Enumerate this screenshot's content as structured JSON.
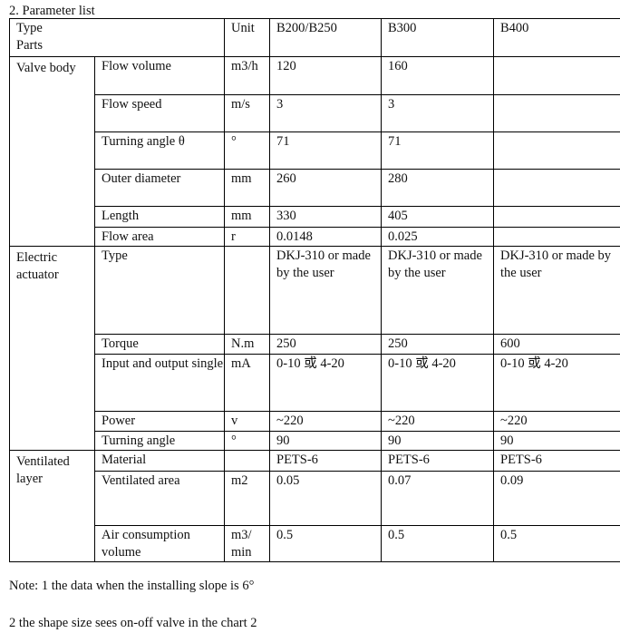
{
  "title": "2. Parameter list",
  "header": {
    "type": "Type",
    "parts": "Parts",
    "unit": "Unit",
    "models": [
      "B200/B250",
      "B300",
      "B400"
    ]
  },
  "groups": [
    {
      "name": "Valve body",
      "rows": [
        {
          "param": "Flow volume",
          "unit": "m3/h",
          "values": [
            "120",
            "160",
            ""
          ]
        },
        {
          "param": "Flow speed",
          "unit": "m/s",
          "values": [
            "3",
            "3",
            ""
          ]
        },
        {
          "param": "Turning angle θ",
          "unit": "°",
          "values": [
            "71",
            "71",
            ""
          ]
        },
        {
          "param": "Outer diameter",
          "unit": "mm",
          "values": [
            "260",
            "280",
            ""
          ]
        },
        {
          "param": "Length",
          "unit": "mm",
          "values": [
            "330",
            "405",
            ""
          ]
        },
        {
          "param": "Flow area",
          "unit": "r",
          "values": [
            "0.0148",
            "0.025",
            ""
          ]
        }
      ]
    },
    {
      "name": "Electric actuator",
      "rows": [
        {
          "param": "Type",
          "unit": "",
          "values": [
            "DKJ-310 or made by the user",
            "DKJ-310 or made by the user",
            "DKJ-310 or made by the user"
          ]
        },
        {
          "param": "Torque",
          "unit": "N.m",
          "values": [
            "250",
            "250",
            "600"
          ]
        },
        {
          "param": "Input and output single",
          "unit": "mA",
          "values": [
            "0-10 或 4-20",
            "0-10 或 4-20",
            "0-10 或 4-20"
          ]
        },
        {
          "param": "Power",
          "unit": "v",
          "values": [
            "~220",
            "~220",
            "~220"
          ]
        },
        {
          "param": "Turning angle",
          "unit": "°",
          "values": [
            "90",
            "90",
            "90"
          ]
        }
      ]
    },
    {
      "name": "Ventilated layer",
      "rows": [
        {
          "param": "Material",
          "unit": "",
          "values": [
            "PETS-6",
            "PETS-6",
            "PETS-6"
          ]
        },
        {
          "param": "Ventilated area",
          "unit": "m2",
          "values": [
            "0.05",
            "0.07",
            "0.09"
          ]
        },
        {
          "param": "Air consumption volume",
          "unit": "m3/ min",
          "values": [
            "0.5",
            "0.5",
            "0.5"
          ]
        }
      ]
    }
  ],
  "notes": [
    "Note: 1 the data when the installing slope is 6°",
    "2 the shape size sees on-off valve in the chart 2"
  ]
}
